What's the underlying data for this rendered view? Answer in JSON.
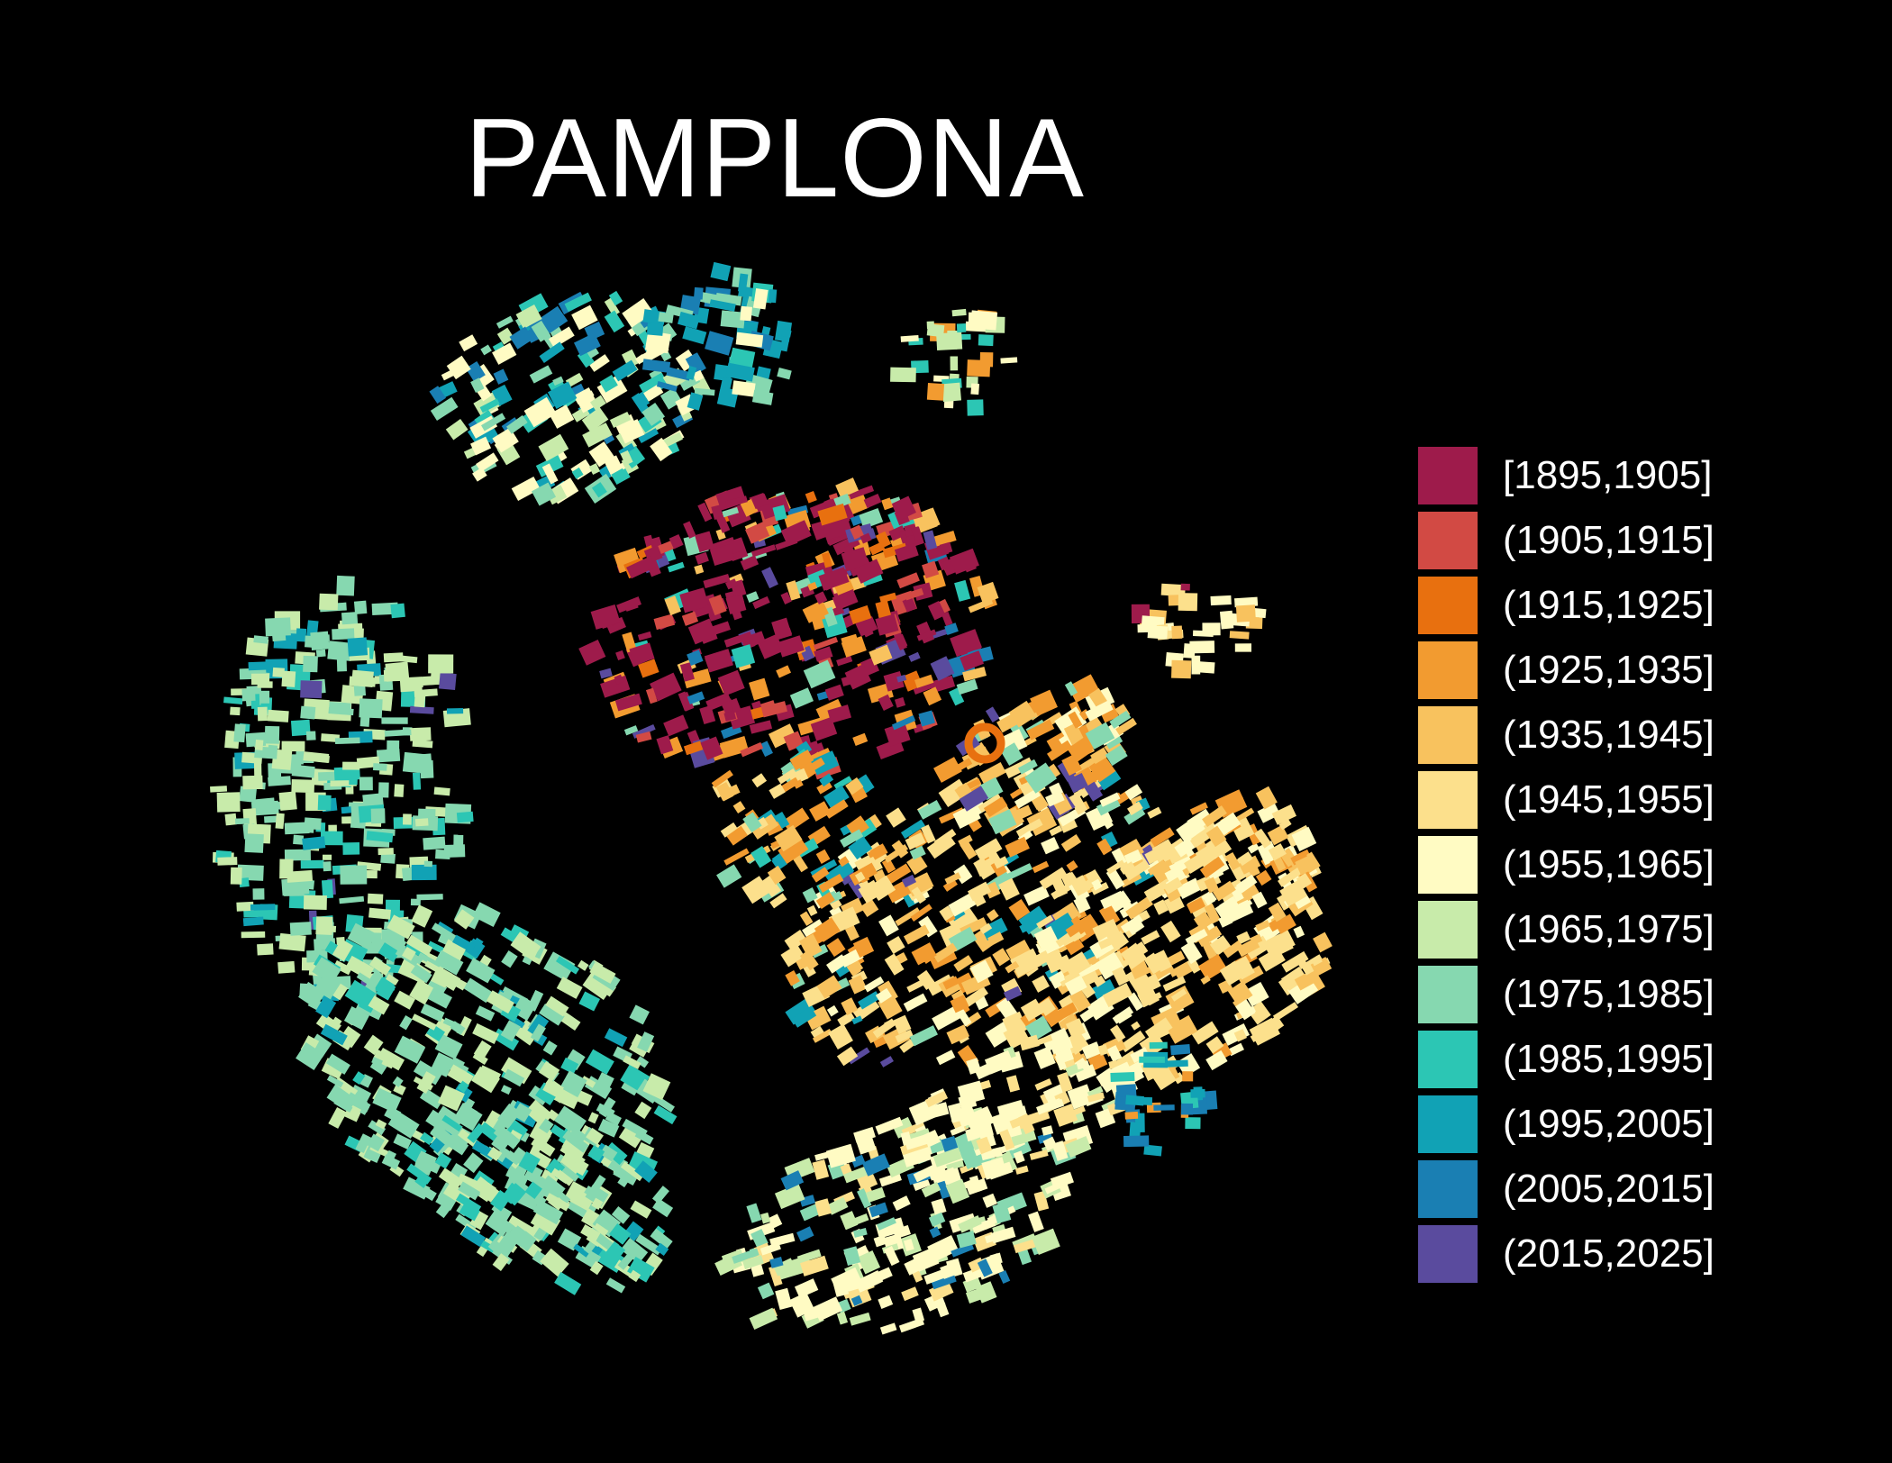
{
  "map": {
    "title": "PAMPLONA",
    "legend": [
      {
        "label": "[1895,1905]",
        "color": "#9e1b4b"
      },
      {
        "label": "(1905,1915]",
        "color": "#d24a44"
      },
      {
        "label": "(1915,1925]",
        "color": "#e8700f"
      },
      {
        "label": "(1925,1935]",
        "color": "#f29b30"
      },
      {
        "label": "(1935,1945]",
        "color": "#f8c25e"
      },
      {
        "label": "(1945,1955]",
        "color": "#fce08c"
      },
      {
        "label": "(1955,1965]",
        "color": "#fffbc3"
      },
      {
        "label": "(1965,1975]",
        "color": "#c8ebaa"
      },
      {
        "label": "(1975,1985]",
        "color": "#86d8b0"
      },
      {
        "label": "(1985,1995]",
        "color": "#2cc6b4"
      },
      {
        "label": "(1995,2005]",
        "color": "#11a2b5"
      },
      {
        "label": "(2005,2015]",
        "color": "#1a7fb3"
      },
      {
        "label": "(2015,2025]",
        "color": "#5a4b9e"
      }
    ]
  }
}
